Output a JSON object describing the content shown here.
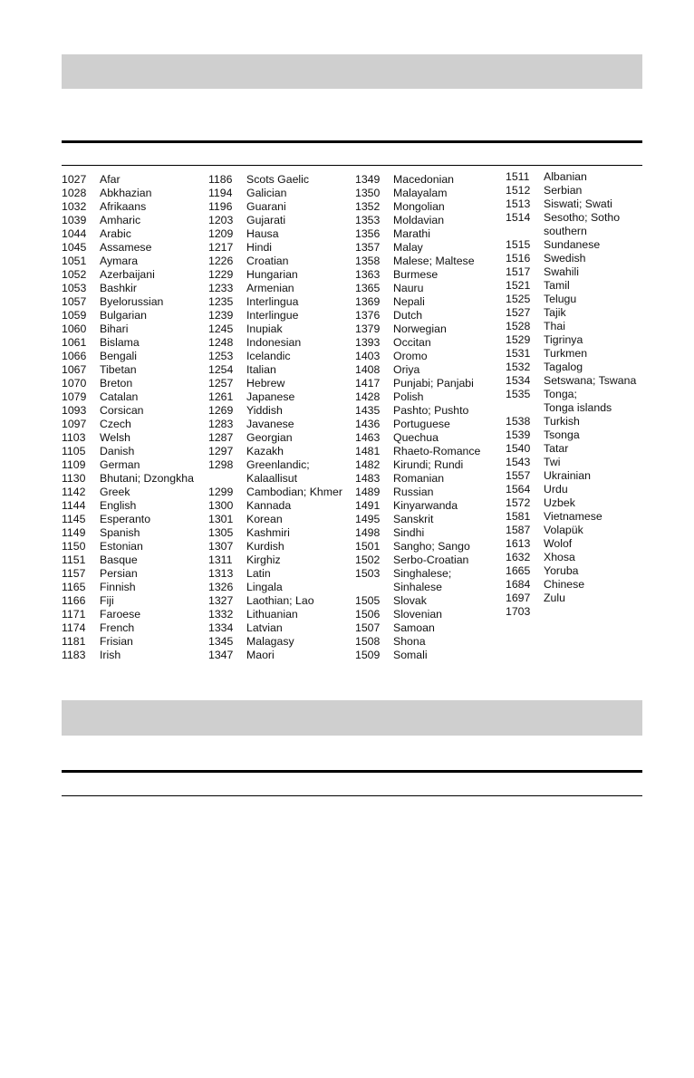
{
  "language_codes": {
    "columns": [
      [
        {
          "code": "1027",
          "name": "Afar"
        },
        {
          "code": "1028",
          "name": "Abkhazian"
        },
        {
          "code": "1032",
          "name": "Afrikaans"
        },
        {
          "code": "1039",
          "name": "Amharic"
        },
        {
          "code": "1044",
          "name": "Arabic"
        },
        {
          "code": "1045",
          "name": "Assamese"
        },
        {
          "code": "1051",
          "name": "Aymara"
        },
        {
          "code": "1052",
          "name": "Azerbaijani"
        },
        {
          "code": "1053",
          "name": "Bashkir"
        },
        {
          "code": "1057",
          "name": "Byelorussian"
        },
        {
          "code": "1059",
          "name": "Bulgarian"
        },
        {
          "code": "1060",
          "name": "Bihari"
        },
        {
          "code": "1061",
          "name": "Bislama"
        },
        {
          "code": "1066",
          "name": "Bengali"
        },
        {
          "code": "1067",
          "name": "Tibetan"
        },
        {
          "code": "1070",
          "name": "Breton"
        },
        {
          "code": "1079",
          "name": "Catalan"
        },
        {
          "code": "1093",
          "name": "Corsican"
        },
        {
          "code": "1097",
          "name": "Czech"
        },
        {
          "code": "1103",
          "name": "Welsh"
        },
        {
          "code": "1105",
          "name": "Danish"
        },
        {
          "code": "1109",
          "name": "German"
        },
        {
          "code": "1130",
          "name": "Bhutani; Dzongkha"
        },
        {
          "code": "1142",
          "name": "Greek"
        },
        {
          "code": "1144",
          "name": "English"
        },
        {
          "code": "1145",
          "name": "Esperanto"
        },
        {
          "code": "1149",
          "name": "Spanish"
        },
        {
          "code": "1150",
          "name": "Estonian"
        },
        {
          "code": "1151",
          "name": "Basque"
        },
        {
          "code": "1157",
          "name": "Persian"
        },
        {
          "code": "1165",
          "name": "Finnish"
        },
        {
          "code": "1166",
          "name": "Fiji"
        },
        {
          "code": "1171",
          "name": "Faroese"
        },
        {
          "code": "1174",
          "name": "French"
        },
        {
          "code": "1181",
          "name": "Frisian"
        },
        {
          "code": "1183",
          "name": "Irish"
        }
      ],
      [
        {
          "code": "1186",
          "name": "Scots Gaelic"
        },
        {
          "code": "1194",
          "name": "Galician"
        },
        {
          "code": "1196",
          "name": "Guarani"
        },
        {
          "code": "1203",
          "name": "Gujarati"
        },
        {
          "code": "1209",
          "name": "Hausa"
        },
        {
          "code": "1217",
          "name": "Hindi"
        },
        {
          "code": "1226",
          "name": "Croatian"
        },
        {
          "code": "1229",
          "name": "Hungarian"
        },
        {
          "code": "1233",
          "name": "Armenian"
        },
        {
          "code": "1235",
          "name": "Interlingua"
        },
        {
          "code": "1239",
          "name": "Interlingue"
        },
        {
          "code": "1245",
          "name": "Inupiak"
        },
        {
          "code": "1248",
          "name": "Indonesian"
        },
        {
          "code": "1253",
          "name": "Icelandic"
        },
        {
          "code": "1254",
          "name": "Italian"
        },
        {
          "code": "1257",
          "name": "Hebrew"
        },
        {
          "code": "1261",
          "name": "Japanese"
        },
        {
          "code": "1269",
          "name": "Yiddish"
        },
        {
          "code": "1283",
          "name": "Javanese"
        },
        {
          "code": "1287",
          "name": "Georgian"
        },
        {
          "code": "1297",
          "name": "Kazakh"
        },
        {
          "code": "1298",
          "name": "Greenlandic;\nKalaallisut"
        },
        {
          "code": "1299",
          "name": "Cambodian; Khmer"
        },
        {
          "code": "1300",
          "name": "Kannada"
        },
        {
          "code": "1301",
          "name": "Korean"
        },
        {
          "code": "1305",
          "name": "Kashmiri"
        },
        {
          "code": "1307",
          "name": "Kurdish"
        },
        {
          "code": "1311",
          "name": "Kirghiz"
        },
        {
          "code": "1313",
          "name": "Latin"
        },
        {
          "code": "1326",
          "name": "Lingala"
        },
        {
          "code": "1327",
          "name": "Laothian; Lao"
        },
        {
          "code": "1332",
          "name": "Lithuanian"
        },
        {
          "code": "1334",
          "name": "Latvian"
        },
        {
          "code": "1345",
          "name": "Malagasy"
        },
        {
          "code": "1347",
          "name": "Maori"
        }
      ],
      [
        {
          "code": "1349",
          "name": "Macedonian"
        },
        {
          "code": "1350",
          "name": "Malayalam"
        },
        {
          "code": "1352",
          "name": "Mongolian"
        },
        {
          "code": "1353",
          "name": "Moldavian"
        },
        {
          "code": "1356",
          "name": "Marathi"
        },
        {
          "code": "1357",
          "name": "Malay"
        },
        {
          "code": "1358",
          "name": "Malese; Maltese"
        },
        {
          "code": "1363",
          "name": "Burmese"
        },
        {
          "code": "1365",
          "name": "Nauru"
        },
        {
          "code": "1369",
          "name": "Nepali"
        },
        {
          "code": "1376",
          "name": "Dutch"
        },
        {
          "code": "1379",
          "name": "Norwegian"
        },
        {
          "code": "1393",
          "name": "Occitan"
        },
        {
          "code": "1403",
          "name": "Oromo"
        },
        {
          "code": "1408",
          "name": "Oriya"
        },
        {
          "code": "1417",
          "name": "Punjabi; Panjabi"
        },
        {
          "code": "1428",
          "name": "Polish"
        },
        {
          "code": "1435",
          "name": "Pashto; Pushto"
        },
        {
          "code": "1436",
          "name": "Portuguese"
        },
        {
          "code": "1463",
          "name": "Quechua"
        },
        {
          "code": "1481",
          "name": "Rhaeto-Romance"
        },
        {
          "code": "1482",
          "name": "Kirundi; Rundi"
        },
        {
          "code": "1483",
          "name": "Romanian"
        },
        {
          "code": "1489",
          "name": "Russian"
        },
        {
          "code": "1491",
          "name": "Kinyarwanda"
        },
        {
          "code": "1495",
          "name": "Sanskrit"
        },
        {
          "code": "1498",
          "name": "Sindhi"
        },
        {
          "code": "1501",
          "name": "Sangho; Sango"
        },
        {
          "code": "1502",
          "name": "Serbo-Croatian"
        },
        {
          "code": "1503",
          "name": "Singhalese;\nSinhalese"
        },
        {
          "code": "1505",
          "name": "Slovak"
        },
        {
          "code": "1506",
          "name": "Slovenian"
        },
        {
          "code": "1507",
          "name": "Samoan"
        },
        {
          "code": "1508",
          "name": "Shona"
        },
        {
          "code": "1509",
          "name": "Somali"
        }
      ],
      [
        {
          "code": "1511",
          "name": "Albanian"
        },
        {
          "code": "1512",
          "name": "Serbian"
        },
        {
          "code": "1513",
          "name": "Siswati; Swati"
        },
        {
          "code": "1514",
          "name": "Sesotho; Sotho\nsouthern"
        },
        {
          "code": "1515",
          "name": "Sundanese"
        },
        {
          "code": "1516",
          "name": "Swedish"
        },
        {
          "code": "1517",
          "name": "Swahili"
        },
        {
          "code": "1521",
          "name": "Tamil"
        },
        {
          "code": "1525",
          "name": "Telugu"
        },
        {
          "code": "1527",
          "name": "Tajik"
        },
        {
          "code": "1528",
          "name": "Thai"
        },
        {
          "code": "1529",
          "name": "Tigrinya"
        },
        {
          "code": "1531",
          "name": "Turkmen"
        },
        {
          "code": "1532",
          "name": "Tagalog"
        },
        {
          "code": "1534",
          "name": "Setswana; Tswana"
        },
        {
          "code": "1535",
          "name": "Tonga;\nTonga islands"
        },
        {
          "code": "1538",
          "name": "Turkish"
        },
        {
          "code": "1539",
          "name": "Tsonga"
        },
        {
          "code": "1540",
          "name": "Tatar"
        },
        {
          "code": "1543",
          "name": "Twi"
        },
        {
          "code": "1557",
          "name": "Ukrainian"
        },
        {
          "code": "1564",
          "name": "Urdu"
        },
        {
          "code": "1572",
          "name": "Uzbek"
        },
        {
          "code": "1581",
          "name": "Vietnamese"
        },
        {
          "code": "1587",
          "name": "Volapük"
        },
        {
          "code": "1613",
          "name": "Wolof"
        },
        {
          "code": "1632",
          "name": "Xhosa"
        },
        {
          "code": "1665",
          "name": "Yoruba"
        },
        {
          "code": "1684",
          "name": "Chinese"
        },
        {
          "code": "1697",
          "name": "Zulu"
        },
        {
          "code": "1703",
          "name": ""
        }
      ]
    ]
  }
}
